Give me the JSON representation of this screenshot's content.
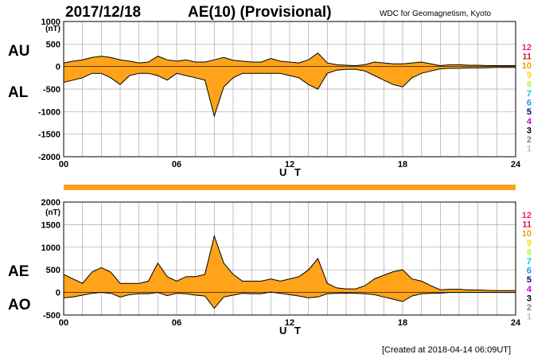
{
  "header": {
    "date": "2017/12/18",
    "title": "AE(10) (Provisional)",
    "institution": "WDC for Geomagnetism, Kyoto"
  },
  "footer": {
    "created": "[Created at 2018-04-14 06:09UT]"
  },
  "colors": {
    "fill": "#ffa31a",
    "line": "#000000",
    "grid": "#a8a8a8",
    "strip": "#ffa31a"
  },
  "legend": [
    {
      "label": "12",
      "color": "#ff1493"
    },
    {
      "label": "11",
      "color": "#dc143c"
    },
    {
      "label": "10",
      "color": "#ff9900"
    },
    {
      "label": "9",
      "color": "#ffd700"
    },
    {
      "label": "8",
      "color": "#adff2f"
    },
    {
      "label": "7",
      "color": "#00ced1"
    },
    {
      "label": "6",
      "color": "#1e90ff"
    },
    {
      "label": "5",
      "color": "#00008b"
    },
    {
      "label": "4",
      "color": "#cc00cc"
    },
    {
      "label": "3",
      "color": "#000000"
    },
    {
      "label": "2",
      "color": "#808080"
    },
    {
      "label": "1",
      "color": "#c0c0c0"
    }
  ],
  "chart_data": [
    {
      "type": "area",
      "label_upper": "AU",
      "label_lower": "AL",
      "unit": "(nT)",
      "xlabel": "U T",
      "xlim": [
        0,
        24
      ],
      "ylim": [
        -2000,
        1000
      ],
      "x_ticks": [
        0,
        6,
        12,
        18,
        24
      ],
      "x_tick_labels": [
        "00",
        "06",
        "12",
        "18",
        "24"
      ],
      "y_ticks": [
        1000,
        500,
        0,
        -500,
        -1000,
        -1500,
        -2000
      ],
      "y_tick_labels": [
        "1000",
        "500",
        "0",
        "-500",
        "-1000",
        "-1500",
        "-2000"
      ],
      "grid": true,
      "series": [
        {
          "name": "AU",
          "x": [
            0,
            0.5,
            1,
            1.5,
            2,
            2.5,
            3,
            3.5,
            4,
            4.5,
            5,
            5.5,
            6,
            6.5,
            7,
            7.5,
            8,
            8.5,
            9,
            9.5,
            10,
            10.5,
            11,
            11.5,
            12,
            12.5,
            13,
            13.5,
            14,
            14.5,
            15,
            15.5,
            16,
            16.5,
            17,
            17.5,
            18,
            18.5,
            19,
            19.5,
            20,
            20.5,
            21,
            21.5,
            22,
            22.5,
            23,
            23.5,
            24
          ],
          "values": [
            80,
            120,
            150,
            200,
            230,
            200,
            150,
            120,
            80,
            100,
            230,
            150,
            120,
            150,
            100,
            100,
            150,
            200,
            140,
            120,
            100,
            100,
            180,
            120,
            100,
            80,
            150,
            300,
            80,
            40,
            30,
            20,
            40,
            100,
            80,
            60,
            60,
            80,
            100,
            60,
            20,
            40,
            40,
            30,
            30,
            20,
            20,
            20,
            20
          ]
        },
        {
          "name": "AL",
          "x": [
            0,
            0.5,
            1,
            1.5,
            2,
            2.5,
            3,
            3.5,
            4,
            4.5,
            5,
            5.5,
            6,
            6.5,
            7,
            7.5,
            8,
            8.5,
            9,
            9.5,
            10,
            10.5,
            11,
            11.5,
            12,
            12.5,
            13,
            13.5,
            14,
            14.5,
            15,
            15.5,
            16,
            16.5,
            17,
            17.5,
            18,
            18.5,
            19,
            19.5,
            20,
            20.5,
            21,
            21.5,
            22,
            22.5,
            23,
            23.5,
            24
          ],
          "values": [
            -350,
            -300,
            -250,
            -150,
            -150,
            -250,
            -400,
            -200,
            -150,
            -150,
            -200,
            -300,
            -150,
            -200,
            -250,
            -300,
            -1100,
            -450,
            -250,
            -150,
            -150,
            -150,
            -150,
            -150,
            -200,
            -250,
            -400,
            -500,
            -150,
            -80,
            -60,
            -60,
            -100,
            -200,
            -300,
            -400,
            -450,
            -250,
            -150,
            -100,
            -50,
            -40,
            -40,
            -30,
            -30,
            -25,
            -20,
            -20,
            -20
          ]
        }
      ]
    },
    {
      "type": "area",
      "label_upper": "AE",
      "label_lower": "AO",
      "unit": "(nT)",
      "xlabel": "U T",
      "xlim": [
        0,
        24
      ],
      "ylim": [
        -500,
        2000
      ],
      "x_ticks": [
        0,
        6,
        12,
        18,
        24
      ],
      "x_tick_labels": [
        "00",
        "06",
        "12",
        "18",
        "24"
      ],
      "y_ticks": [
        2000,
        1500,
        1000,
        500,
        0,
        -500
      ],
      "y_tick_labels": [
        "2000",
        "1500",
        "1000",
        "500",
        "0",
        "-500"
      ],
      "grid": true,
      "series": [
        {
          "name": "AE",
          "x": [
            0,
            0.5,
            1,
            1.5,
            2,
            2.5,
            3,
            3.5,
            4,
            4.5,
            5,
            5.5,
            6,
            6.5,
            7,
            7.5,
            8,
            8.5,
            9,
            9.5,
            10,
            10.5,
            11,
            11.5,
            12,
            12.5,
            13,
            13.5,
            14,
            14.5,
            15,
            15.5,
            16,
            16.5,
            17,
            17.5,
            18,
            18.5,
            19,
            19.5,
            20,
            20.5,
            21,
            21.5,
            22,
            22.5,
            23,
            23.5,
            24
          ],
          "values": [
            400,
            300,
            200,
            450,
            550,
            450,
            200,
            200,
            200,
            250,
            650,
            350,
            250,
            350,
            350,
            400,
            1250,
            650,
            400,
            250,
            250,
            250,
            300,
            250,
            300,
            350,
            500,
            750,
            200,
            100,
            80,
            80,
            150,
            300,
            380,
            460,
            500,
            300,
            250,
            150,
            60,
            70,
            70,
            55,
            55,
            45,
            40,
            40,
            40
          ]
        },
        {
          "name": "AO",
          "x": [
            0,
            0.5,
            1,
            1.5,
            2,
            2.5,
            3,
            3.5,
            4,
            4.5,
            5,
            5.5,
            6,
            6.5,
            7,
            7.5,
            8,
            8.5,
            9,
            9.5,
            10,
            10.5,
            11,
            11.5,
            12,
            12.5,
            13,
            13.5,
            14,
            14.5,
            15,
            15.5,
            16,
            16.5,
            17,
            17.5,
            18,
            18.5,
            19,
            19.5,
            20,
            20.5,
            21,
            21.5,
            22,
            22.5,
            23,
            23.5,
            24
          ],
          "values": [
            -120,
            -100,
            -60,
            -20,
            0,
            -20,
            -100,
            -50,
            -30,
            -30,
            0,
            -70,
            -20,
            -30,
            -60,
            -80,
            -350,
            -100,
            -60,
            -20,
            -30,
            -30,
            10,
            -20,
            -50,
            -80,
            -120,
            -100,
            -30,
            -20,
            -15,
            -20,
            -30,
            -50,
            -100,
            -150,
            -200,
            -80,
            -30,
            -20,
            -15,
            0,
            0,
            0,
            0,
            0,
            0,
            0,
            0
          ]
        }
      ]
    }
  ]
}
